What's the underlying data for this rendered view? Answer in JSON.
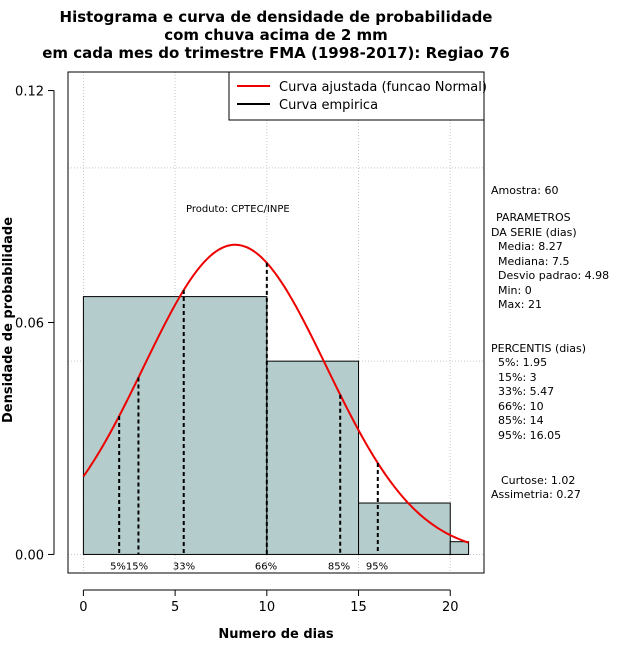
{
  "chart_data": {
    "type": "bar",
    "title_lines": [
      "Histograma e curva de densidade de probabilidade",
      "com chuva acima de 2 mm",
      "em cada mes do trimestre FMA (1998-2017): Regiao 76"
    ],
    "xlabel": "Numero de dias",
    "ylabel": "Densidade de probabilidade",
    "xlim": [
      -0.84,
      21.84
    ],
    "ylim": [
      -0.0048,
      0.1248
    ],
    "x_ticks": [
      0,
      5,
      10,
      15,
      20
    ],
    "x_tick_labels": [
      "0",
      "5",
      "10",
      "15",
      "20"
    ],
    "y_ticks": [
      0.0,
      0.06,
      0.12
    ],
    "y_tick_labels": [
      "0.00",
      "0.06",
      "0.12"
    ],
    "grid": true,
    "bins": [
      {
        "start": 0,
        "end": 10,
        "density": 0.0667
      },
      {
        "start": 10,
        "end": 15,
        "density": 0.05
      },
      {
        "start": 15,
        "end": 20,
        "density": 0.0133
      },
      {
        "start": 20,
        "end": 21,
        "density": 0.0033
      }
    ],
    "bar_color": "#b4cccc",
    "normal_fit": {
      "mean": 8.27,
      "sd": 4.98,
      "x_range": [
        0,
        21
      ],
      "color": "#ee0000"
    },
    "percentiles": [
      {
        "label": "5%",
        "value": 1.95
      },
      {
        "label": "15%",
        "value": 3
      },
      {
        "label": "33%",
        "value": 5.47
      },
      {
        "label": "66%",
        "value": 10
      },
      {
        "label": "85%",
        "value": 14
      },
      {
        "label": "95%",
        "value": 16.05
      }
    ],
    "legend": {
      "position": "top-right",
      "entries": [
        {
          "label": "Curva ajustada (funcao Normal)",
          "color": "#ee0000"
        },
        {
          "label": "Curva empirica",
          "color": "#000000"
        }
      ]
    },
    "annotation": "Produto: CPTEC/INPE"
  },
  "stats_panel": {
    "sample": "Amostra: 60",
    "params_header_1": "PARAMETROS",
    "params_header_2": "DA SERIE (dias)",
    "params": [
      "Media: 8.27",
      "Mediana: 7.5",
      "Desvio padrao: 4.98",
      "Min: 0",
      "Max: 21"
    ],
    "percentis_header": "PERCENTIS (dias)",
    "percentis": [
      "5%: 1.95",
      "15%: 3",
      "33%: 5.47",
      "66%: 10",
      "85%: 14",
      "95%: 16.05"
    ],
    "curtose": "Curtose: 1.02",
    "assimetria": "Assimetria: 0.27"
  }
}
